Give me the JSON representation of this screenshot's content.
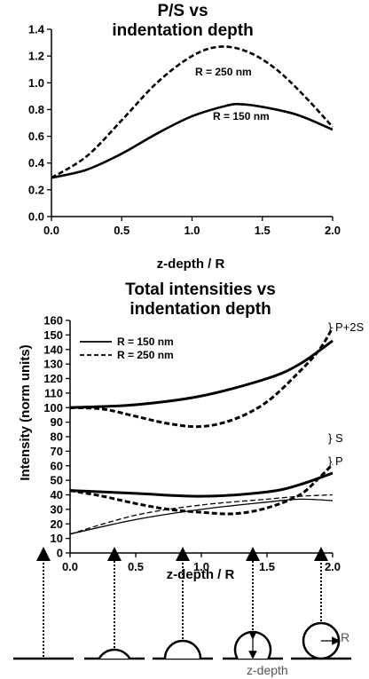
{
  "chart_data": [
    {
      "type": "line",
      "title": "P/S vs\nindentation depth",
      "xlabel": "z-depth / R",
      "ylabel": "",
      "xlim": [
        0,
        2.0
      ],
      "ylim": [
        0,
        1.4
      ],
      "xticks": [
        "0.0",
        "0.5",
        "1.0",
        "1.5",
        "2.0"
      ],
      "yticks": [
        "0.0",
        "0.2",
        "0.4",
        "0.6",
        "0.8",
        "1.0",
        "1.2",
        "1.4"
      ],
      "annotations": [
        "R = 250 nm",
        "R = 150 nm"
      ],
      "series": [
        {
          "name": "R = 150 nm",
          "style": "solid",
          "x": [
            0,
            0.25,
            0.5,
            0.75,
            1.0,
            1.25,
            1.35,
            1.5,
            1.75,
            2.0
          ],
          "y": [
            0.29,
            0.35,
            0.47,
            0.62,
            0.75,
            0.83,
            0.84,
            0.82,
            0.76,
            0.65
          ]
        },
        {
          "name": "R = 250 nm",
          "style": "dashed",
          "x": [
            0,
            0.25,
            0.5,
            0.75,
            1.0,
            1.2,
            1.4,
            1.6,
            1.8,
            2.0
          ],
          "y": [
            0.29,
            0.45,
            0.72,
            1.0,
            1.2,
            1.27,
            1.23,
            1.1,
            0.9,
            0.67
          ]
        }
      ]
    },
    {
      "type": "line",
      "title": "Total intensities vs\nindentation depth",
      "xlabel": "z-depth / R",
      "ylabel": "Intensity (norm units)",
      "xlim": [
        0,
        2.0
      ],
      "ylim": [
        0,
        160
      ],
      "xticks": [
        "0.0",
        "0.5",
        "1.0",
        "1.5",
        "2.0"
      ],
      "yticks": [
        "0",
        "10",
        "20",
        "30",
        "40",
        "50",
        "60",
        "70",
        "80",
        "90",
        "100",
        "110",
        "120",
        "130",
        "140",
        "150",
        "160"
      ],
      "legend": [
        {
          "name": "R = 150 nm",
          "style": "solid"
        },
        {
          "name": "R = 250 nm",
          "style": "dashed"
        }
      ],
      "side_labels": [
        "} P+2S",
        "} S",
        "} P"
      ],
      "series": [
        {
          "name": "P+2S, R = 150 nm",
          "style": "solid",
          "width": 3,
          "x": [
            0,
            0.5,
            1.0,
            1.5,
            1.75,
            2.0
          ],
          "y": [
            100,
            102,
            108,
            120,
            130,
            146
          ]
        },
        {
          "name": "P+2S, R = 250 nm",
          "style": "dashed",
          "width": 3,
          "x": [
            0,
            0.25,
            0.5,
            0.75,
            1.0,
            1.25,
            1.5,
            1.75,
            1.9,
            2.0
          ],
          "y": [
            100,
            99,
            94,
            89,
            87,
            92,
            104,
            125,
            140,
            155
          ]
        },
        {
          "name": "S, R = 150 nm",
          "style": "solid",
          "width": 3,
          "x": [
            0,
            0.5,
            1.0,
            1.5,
            1.75,
            2.0
          ],
          "y": [
            43,
            41,
            39,
            42,
            47,
            55
          ]
        },
        {
          "name": "S, R = 250 nm",
          "style": "dashed",
          "width": 3,
          "x": [
            0,
            0.25,
            0.5,
            0.75,
            1.0,
            1.25,
            1.5,
            1.75,
            1.9,
            2.0
          ],
          "y": [
            43,
            39,
            34,
            30,
            28,
            27,
            31,
            40,
            52,
            61
          ]
        },
        {
          "name": "P, R = 150 nm",
          "style": "solid",
          "width": 1.3,
          "x": [
            0,
            0.5,
            1.0,
            1.5,
            1.75,
            2.0
          ],
          "y": [
            13,
            23,
            30,
            35,
            37,
            36
          ]
        },
        {
          "name": "P, R = 250 nm",
          "style": "dashed",
          "width": 1.3,
          "x": [
            0,
            0.5,
            1.0,
            1.5,
            1.75,
            2.0
          ],
          "y": [
            13,
            26,
            33,
            37,
            39,
            40
          ]
        }
      ]
    }
  ],
  "diagram": {
    "depth_label": "z-depth",
    "radius_label": "R",
    "stages": [
      0,
      0.5,
      1.0,
      1.5,
      2.0
    ]
  }
}
